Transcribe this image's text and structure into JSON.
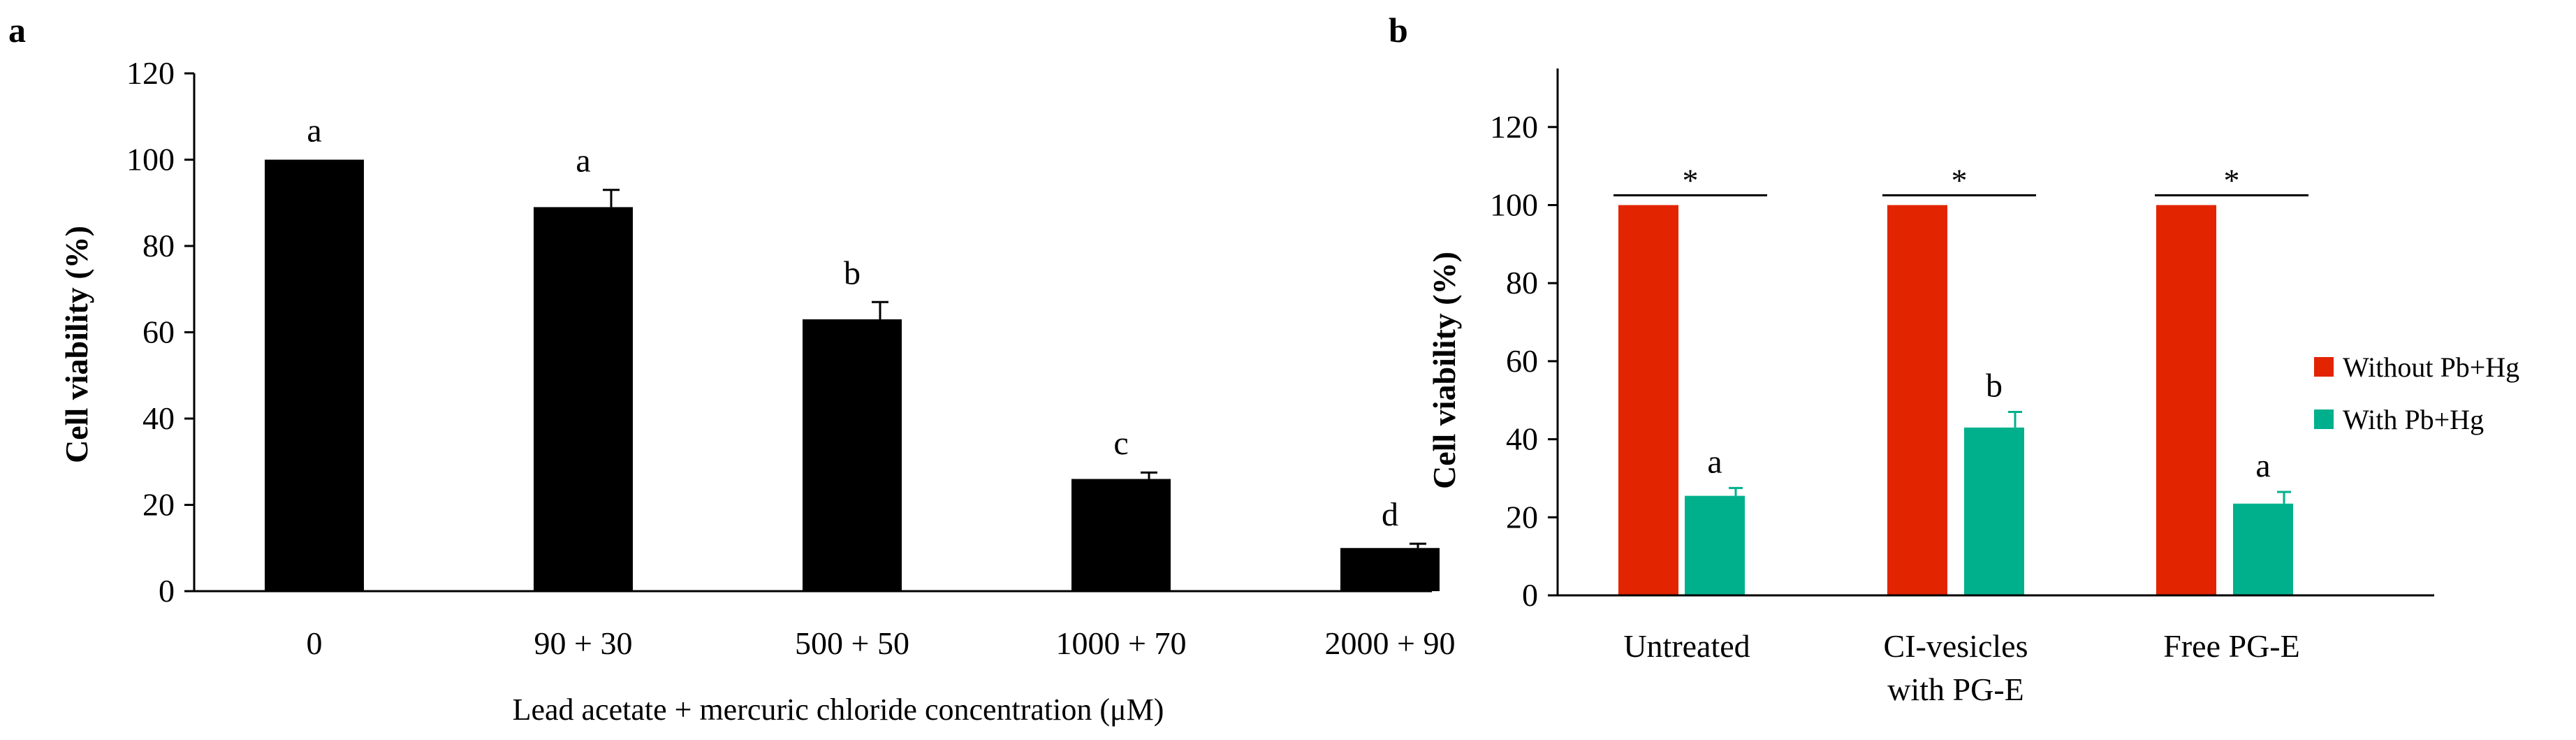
{
  "colors": {
    "panel_a_bar": "#000000",
    "without": "#e32400",
    "with": "#00b08c",
    "axis": "#000000"
  },
  "chart_data": [
    {
      "panel": "a",
      "type": "bar",
      "xlabel": "Lead acetate + mercuric chloride concentration (μM)",
      "ylabel": "Cell viability (%)",
      "ylim": [
        0,
        120
      ],
      "yticks": [
        "0",
        "20",
        "40",
        "60",
        "80",
        "100",
        "120"
      ],
      "categories": [
        "0",
        "90 + 30",
        "500 + 50",
        "1000 + 70",
        "2000 + 90"
      ],
      "values": [
        100,
        89,
        63,
        26,
        10
      ],
      "errors": [
        0,
        4,
        4,
        1.5,
        1
      ],
      "letters": [
        "a",
        "a",
        "b",
        "c",
        "d"
      ]
    },
    {
      "panel": "b",
      "type": "bar",
      "ylabel": "Cell viability (%)",
      "ylim": [
        0,
        135
      ],
      "yticks": [
        "0",
        "20",
        "40",
        "60",
        "80",
        "100",
        "120"
      ],
      "categories": [
        [
          "Untreated"
        ],
        [
          "CI-vesicles",
          "with PG-E"
        ],
        [
          "Free PG-E"
        ]
      ],
      "series": [
        {
          "name": "Without Pb+Hg",
          "values": [
            100,
            100,
            100
          ],
          "errors": [
            0,
            0,
            0
          ],
          "letters": [
            "",
            "",
            ""
          ]
        },
        {
          "name": "With Pb+Hg",
          "values": [
            25.5,
            43,
            23.5
          ],
          "errors": [
            2,
            4,
            3
          ],
          "letters": [
            "a",
            "b",
            "a"
          ]
        }
      ],
      "significance": [
        "*",
        "*",
        "*"
      ],
      "legend": [
        "Without Pb+Hg",
        "With Pb+Hg"
      ],
      "legend_position": "right"
    }
  ]
}
